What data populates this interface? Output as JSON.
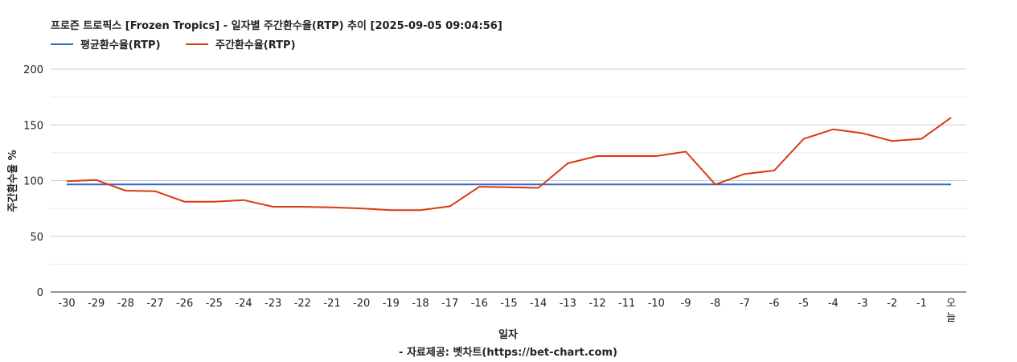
{
  "chart_data": {
    "type": "line",
    "title": "프로즌 트로픽스 [Frozen Tropics] - 일자별 주간환수율(RTP) 추이 [2025-09-05 09:04:56]",
    "xlabel": "일자",
    "ylabel": "주간환수율 %",
    "source": "- 자료제공: 벳차트(https://bet-chart.com)",
    "categories": [
      "-30",
      "-29",
      "-28",
      "-27",
      "-26",
      "-25",
      "-24",
      "-23",
      "-22",
      "-21",
      "-20",
      "-19",
      "-18",
      "-17",
      "-16",
      "-15",
      "-14",
      "-13",
      "-12",
      "-11",
      "-10",
      "-9",
      "-8",
      "-7",
      "-6",
      "-5",
      "-4",
      "-3",
      "-2",
      "-1",
      "오늘"
    ],
    "ylim": [
      0,
      200
    ],
    "yticks": [
      "0",
      "50",
      "100",
      "150",
      "200"
    ],
    "grid": true,
    "legend_position": "top-left",
    "series": [
      {
        "name": "평균환수율(RTP)",
        "color": "#3366cc",
        "values": [
          96.5,
          96.5,
          96.5,
          96.5,
          96.5,
          96.5,
          96.5,
          96.5,
          96.5,
          96.5,
          96.5,
          96.5,
          96.5,
          96.5,
          96.5,
          96.5,
          96.5,
          96.5,
          96.5,
          96.5,
          96.5,
          96.5,
          96.5,
          96.5,
          96.5,
          96.5,
          96.5,
          96.5,
          96.5,
          96.5,
          96.5
        ]
      },
      {
        "name": "주간환수율(RTP)",
        "color": "#dc3912",
        "values": [
          99.5,
          100.5,
          91,
          90.5,
          81,
          81,
          82.5,
          76.5,
          76.5,
          76,
          75,
          73.5,
          73.5,
          77,
          94.5,
          94,
          93.5,
          115.5,
          122,
          122,
          122,
          126,
          96.5,
          106,
          109,
          137.5,
          146,
          142.5,
          135.5,
          137.5,
          156.5
        ]
      }
    ]
  }
}
